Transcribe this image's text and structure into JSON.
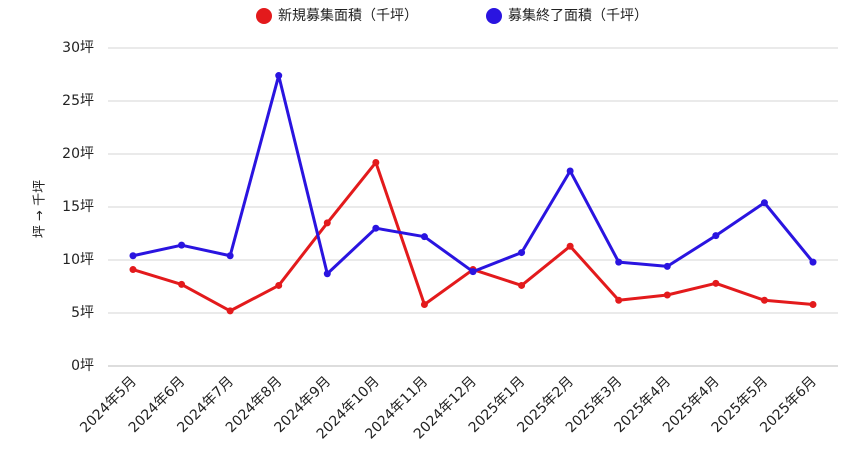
{
  "chart_data": {
    "type": "line",
    "ylabel": "坪 → 千坪",
    "ylim": [
      0,
      30
    ],
    "yticks": [
      "0坪",
      "5坪",
      "10坪",
      "15坪",
      "20坪",
      "25坪",
      "30坪"
    ],
    "ytick_values": [
      0,
      5,
      10,
      15,
      20,
      25,
      30
    ],
    "legend_position": "top-center",
    "grid": true,
    "categories": [
      "2024年5月",
      "2024年6月",
      "2024年7月",
      "2024年8月",
      "2024年9月",
      "2024年10月",
      "2024年11月",
      "2024年12月",
      "2025年1月",
      "2025年2月",
      "2025年3月",
      "2025年4月",
      "2025年4月",
      "2025年5月",
      "2025年6月"
    ],
    "series": [
      {
        "name": "新規募集面積（千坪）",
        "color": "#e31a1c",
        "values": [
          9.1,
          7.7,
          5.2,
          7.6,
          13.5,
          19.2,
          5.8,
          9.1,
          7.6,
          11.3,
          6.2,
          6.7,
          7.8,
          6.2,
          5.8
        ]
      },
      {
        "name": "募集終了面積（千坪）",
        "color": "#2a14e0",
        "values": [
          10.4,
          11.4,
          10.4,
          27.4,
          8.7,
          13.0,
          12.2,
          8.9,
          10.7,
          18.4,
          9.8,
          9.4,
          12.3,
          15.4,
          9.8
        ]
      }
    ]
  }
}
